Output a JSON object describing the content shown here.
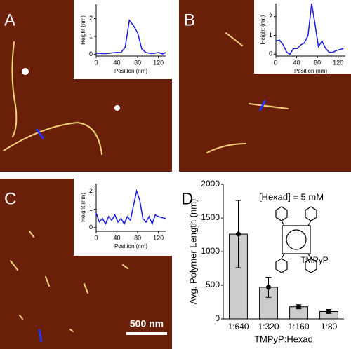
{
  "chart_data": [
    {
      "type": "line",
      "panel_label": "A",
      "x_label": "Position (nm)",
      "y_label": "Height (nm)",
      "x": [
        0,
        8,
        16,
        24,
        32,
        40,
        48,
        56,
        64,
        72,
        80,
        88,
        96,
        104,
        112,
        120,
        128,
        134
      ],
      "values": [
        0.05,
        0.05,
        0.03,
        0.05,
        0.08,
        0.1,
        0.1,
        0.4,
        1.9,
        1.6,
        1.2,
        0.3,
        0.1,
        0.05,
        0.05,
        0.1,
        0.02,
        0.1
      ],
      "color": "#1a1ae6",
      "xlim": [
        0,
        134
      ],
      "ylim": [
        -0.1,
        2.8
      ],
      "xticks": [
        0,
        40,
        80,
        120
      ],
      "yticks": [
        0,
        1,
        2
      ]
    },
    {
      "type": "line",
      "panel_label": "B",
      "x_label": "Position (nm)",
      "y_label": "Height (nm)",
      "x": [
        0,
        7,
        14,
        21,
        27,
        34,
        41,
        48,
        55,
        62,
        69,
        76,
        82,
        89,
        96,
        103,
        110,
        117,
        124,
        130
      ],
      "values": [
        0.7,
        0.75,
        0.5,
        0.1,
        0.0,
        0.3,
        0.3,
        0.5,
        0.6,
        1.0,
        2.7,
        1.5,
        0.4,
        0.7,
        0.3,
        0.1,
        0.1,
        0.2,
        0.25,
        0.3
      ],
      "color": "#1a1ae6",
      "xlim": [
        0,
        134
      ],
      "ylim": [
        -0.1,
        2.7
      ],
      "xticks": [
        0,
        40,
        80,
        120
      ],
      "yticks": [
        0,
        1,
        2
      ]
    },
    {
      "type": "line",
      "panel_label": "C",
      "x_label": "Position (nm)",
      "y_label": "Height (nm)",
      "x": [
        0,
        6,
        12,
        18,
        24,
        30,
        36,
        42,
        48,
        54,
        60,
        66,
        72,
        78,
        84,
        90,
        96,
        102,
        108,
        114,
        120,
        126,
        134
      ],
      "values": [
        0.8,
        0.3,
        0.5,
        0.2,
        0.6,
        0.4,
        0.7,
        0.3,
        0.5,
        0.2,
        0.6,
        0.4,
        1.2,
        2.0,
        1.5,
        0.5,
        0.3,
        0.6,
        0.2,
        0.7,
        0.6,
        0.55,
        0.5
      ],
      "color": "#1a1ae6",
      "xlim": [
        0,
        134
      ],
      "ylim": [
        -0.2,
        2.4
      ],
      "xticks": [
        0,
        40,
        80,
        120
      ],
      "yticks": [
        0,
        1,
        2
      ]
    },
    {
      "type": "bar",
      "panel_label": "D",
      "x_label": "TMPyP:Hexad",
      "y_label": "Avg. Polymer Length (nm)",
      "categories": [
        "1:640",
        "1:320",
        "1:160",
        "1:80"
      ],
      "values": [
        1260,
        470,
        180,
        110
      ],
      "errors": [
        500,
        150,
        30,
        30
      ],
      "color": "#cccccc",
      "ylim": [
        0,
        2000
      ],
      "yticks": [
        0,
        500,
        1000,
        1500,
        2000
      ]
    }
  ],
  "annotations": {
    "scale_bar": "500 nm",
    "concentration": "[Hexad] = 5 mM",
    "molecule": "TMPyP"
  }
}
